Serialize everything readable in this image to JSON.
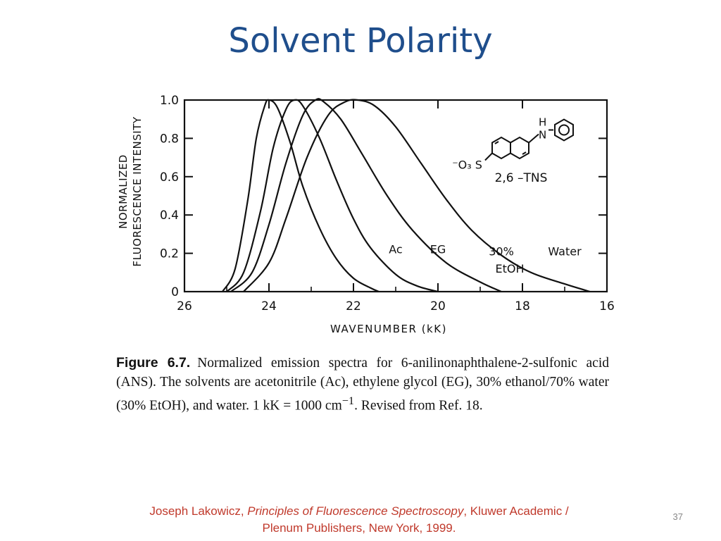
{
  "slide": {
    "title": "Solvent Polarity",
    "number": "37"
  },
  "chart_data": {
    "type": "line",
    "title": "",
    "ylabel_lines": [
      "NORMALIZED",
      "FLUORESCENCE INTENSITY"
    ],
    "xlabel": "WAVENUMBER (kK)",
    "xlim": [
      26,
      16
    ],
    "ylim": [
      0,
      1.0
    ],
    "xticks": [
      26,
      24,
      22,
      20,
      18,
      16
    ],
    "xtick_labels": [
      "26",
      "24",
      "22",
      "20",
      "18",
      "16"
    ],
    "yticks": [
      0,
      0.2,
      0.4,
      0.6,
      0.8,
      1.0
    ],
    "ytick_labels": [
      "0",
      "0.2",
      "0.4",
      "0.6",
      "0.8",
      "1.0"
    ],
    "grid": false,
    "series": [
      {
        "name": "Ac",
        "x": [
          25.1,
          24.8,
          24.5,
          24.3,
          24.1,
          24.0,
          23.8,
          23.5,
          23.2,
          22.8,
          22.4,
          22.0,
          21.6,
          21.4
        ],
        "y": [
          0.0,
          0.12,
          0.48,
          0.8,
          0.97,
          1.0,
          0.96,
          0.78,
          0.55,
          0.33,
          0.17,
          0.07,
          0.02,
          0.0
        ]
      },
      {
        "name": "EG",
        "x": [
          25.0,
          24.6,
          24.2,
          23.9,
          23.6,
          23.4,
          23.2,
          22.8,
          22.4,
          22.0,
          21.6,
          21.0,
          20.5,
          20.0
        ],
        "y": [
          0.0,
          0.1,
          0.42,
          0.75,
          0.95,
          1.0,
          0.97,
          0.8,
          0.58,
          0.38,
          0.23,
          0.09,
          0.03,
          0.0
        ]
      },
      {
        "name": "30% EtOH",
        "x": [
          24.9,
          24.4,
          24.0,
          23.6,
          23.2,
          22.9,
          22.7,
          22.3,
          21.8,
          21.2,
          20.6,
          19.8,
          19.0,
          18.5
        ],
        "y": [
          0.0,
          0.1,
          0.35,
          0.67,
          0.92,
          1.0,
          0.99,
          0.9,
          0.72,
          0.5,
          0.32,
          0.15,
          0.05,
          0.0
        ]
      },
      {
        "name": "Water",
        "x": [
          24.6,
          24.0,
          23.6,
          23.1,
          22.6,
          22.2,
          21.9,
          21.5,
          21.0,
          20.4,
          19.8,
          19.2,
          18.5,
          17.8,
          17.0,
          16.4
        ],
        "y": [
          0.0,
          0.15,
          0.38,
          0.7,
          0.92,
          0.99,
          1.0,
          0.97,
          0.86,
          0.67,
          0.48,
          0.32,
          0.19,
          0.1,
          0.04,
          0.0
        ]
      }
    ],
    "labels": [
      {
        "text": "Ac",
        "x": 21.0,
        "y": 0.2
      },
      {
        "text": "EG",
        "x": 20.0,
        "y": 0.2
      },
      {
        "text": "30%",
        "x": 18.5,
        "y": 0.19
      },
      {
        "text": "EtOH",
        "x": 18.3,
        "y": 0.1
      },
      {
        "text": "Water",
        "x": 17.0,
        "y": 0.19
      }
    ],
    "structure_labels": {
      "name": "2,6 –TNS",
      "sulfonate": "⁻O₃ S",
      "amine_h": "H",
      "amine_n": "N"
    }
  },
  "caption": {
    "label": "Figure 6.7.",
    "text": "Normalized emission spectra for 6-anilinonaphthalene-2-sulfonic acid (ANS). The solvents are acetonitrile (Ac), ethylene glycol (EG), 30% ethanol/70% water (30% EtOH), and water. 1 kK = 1000 cm",
    "superscript": "−1",
    "tail": ". Revised from Ref. 18."
  },
  "citation": {
    "author": "Joseph Lakowicz, ",
    "book": "Principles of Fluorescence Spectroscopy",
    "rest": ", Kluwer Academic / Plenum Publishers, New York, 1999."
  }
}
